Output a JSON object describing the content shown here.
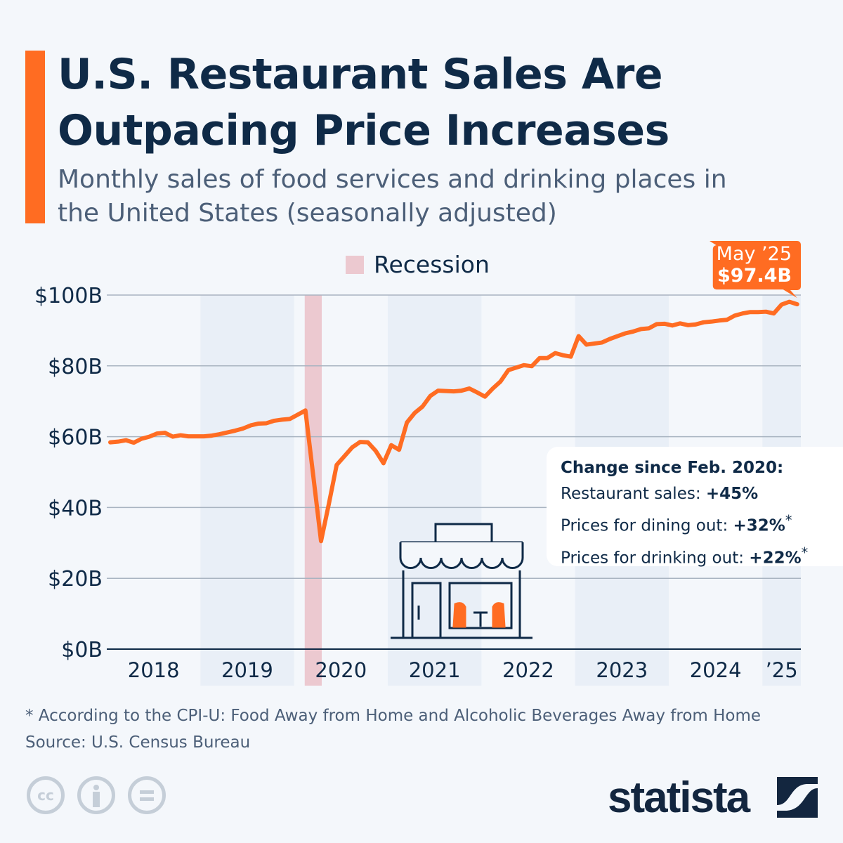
{
  "header": {
    "title": "U.S. Restaurant Sales Are Outpacing Price Increases",
    "subtitle": "Monthly sales of food services and drinking places in the United States (seasonally adjusted)"
  },
  "colors": {
    "accent": "#ff6c22",
    "navy": "#0f2a47",
    "recession": "#ecc9d0",
    "band": "#e9eff7"
  },
  "chart_data": {
    "type": "line",
    "title": "",
    "xlabel": "",
    "ylabel": "",
    "ylim": [
      0,
      100
    ],
    "grid": true,
    "y_ticks": [
      "$0B",
      "$20B",
      "$40B",
      "$60B",
      "$80B",
      "$100B"
    ],
    "x_ticks": [
      "2018",
      "2019",
      "2020",
      "2021",
      "2022",
      "2023",
      "2024",
      "’25"
    ],
    "x_start": "2018-01",
    "x_end": "2025-05",
    "legend": {
      "label": "Recession",
      "placement": "top"
    },
    "recession": {
      "start": "2020-02",
      "end": "2020-04"
    },
    "series": [
      {
        "values": [
          58.4,
          58.6,
          59.0,
          58.3,
          59.4,
          60.0,
          60.9,
          61.1,
          60.0,
          60.4,
          60.1,
          60.1,
          60.1,
          60.3,
          60.7,
          61.2,
          61.7,
          62.3,
          63.2,
          63.7,
          63.8,
          64.5,
          64.8,
          65.0,
          66.2,
          67.4,
          49.0,
          30.5,
          41.0,
          52.0,
          54.5,
          57.0,
          58.5,
          58.4,
          56.0,
          52.5,
          57.6,
          56.3,
          64.0,
          66.7,
          68.5,
          71.5,
          73.0,
          72.9,
          72.8,
          73.0,
          73.6,
          72.5,
          71.3,
          73.6,
          75.6,
          78.8,
          79.5,
          80.2,
          79.9,
          82.2,
          82.2,
          83.6,
          83.0,
          82.6,
          88.4,
          86.0,
          86.3,
          86.6,
          87.6,
          88.4,
          89.2,
          89.7,
          90.4,
          90.6,
          91.8,
          91.9,
          91.4,
          92.0,
          91.5,
          91.7,
          92.3,
          92.5,
          92.8,
          93.0,
          94.2,
          94.8,
          95.2,
          95.2,
          95.3,
          94.8,
          97.3,
          98.1,
          97.4
        ]
      }
    ],
    "annotation": {
      "label": "May ’25",
      "value": "$97.4B"
    }
  },
  "callout": {
    "heading": "Change since Feb. 2020:",
    "rows": [
      {
        "label": "Restaurant sales: ",
        "value": "+45%",
        "mark": ""
      },
      {
        "label": "Prices for dining out: ",
        "value": "+32%",
        "mark": "*"
      },
      {
        "label": "Prices for drinking out: ",
        "value": "+22%",
        "mark": "*"
      }
    ]
  },
  "footer": {
    "note": "* According to the CPI-U: Food Away from Home and Alcoholic Beverages Away from Home",
    "source": "Source: U.S. Census Bureau",
    "license_icons": [
      "cc-icon",
      "attribution-icon",
      "no-derivatives-icon"
    ],
    "cc_text": "cc",
    "brand": "statista"
  }
}
